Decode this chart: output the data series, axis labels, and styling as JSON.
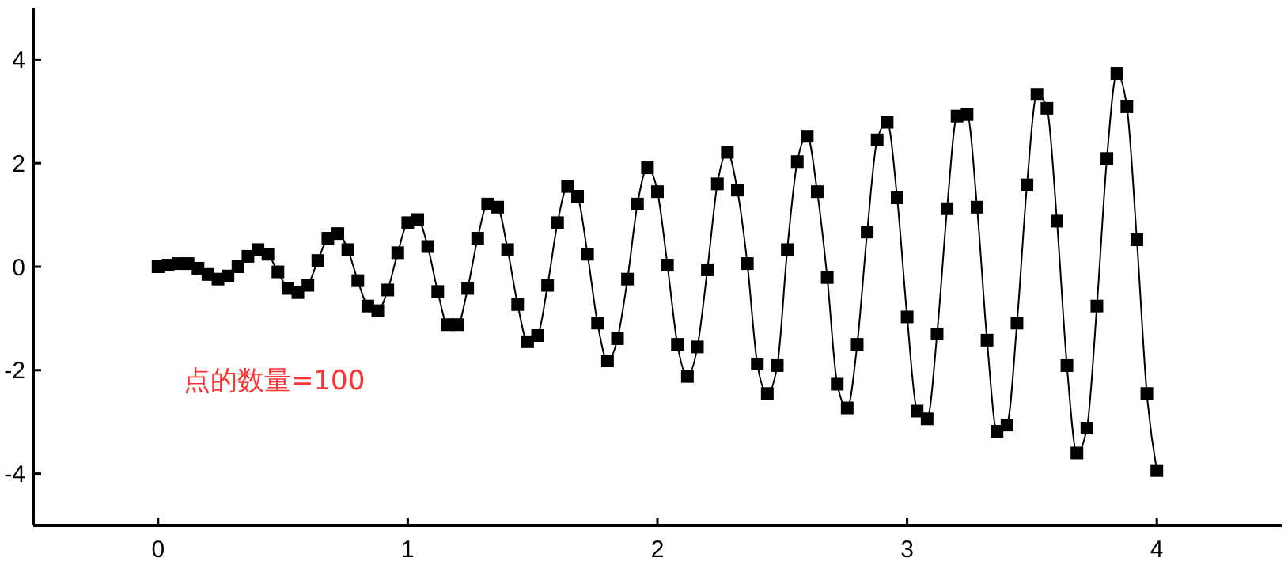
{
  "chart_data": {
    "type": "line",
    "marker": "square",
    "line_style": "solid",
    "xlim": [
      -0.5,
      4.5
    ],
    "ylim": [
      -5,
      5
    ],
    "xticks": [
      0,
      1,
      2,
      3,
      4
    ],
    "yticks": [
      -4,
      -2,
      0,
      2,
      4
    ],
    "grid": false,
    "annotations": [
      "点的数量=100"
    ],
    "x": [
      0,
      0.04,
      0.08,
      0.12,
      0.16,
      0.2,
      0.24,
      0.28,
      0.32,
      0.36,
      0.4,
      0.44,
      0.48,
      0.52,
      0.56,
      0.6,
      0.64,
      0.68,
      0.72,
      0.76,
      0.8,
      0.84,
      0.88,
      0.92,
      0.96,
      1,
      1.04,
      1.08,
      1.12,
      1.16,
      1.2,
      1.24,
      1.28,
      1.32,
      1.36,
      1.4,
      1.44,
      1.48,
      1.52,
      1.56,
      1.6,
      1.64,
      1.68,
      1.72,
      1.76,
      1.8,
      1.84,
      1.88,
      1.92,
      1.96,
      2,
      2.04,
      2.08,
      2.12,
      2.16,
      2.2,
      2.24,
      2.28,
      2.32,
      2.36,
      2.4,
      2.44,
      2.48,
      2.52,
      2.56,
      2.6,
      2.64,
      2.68,
      2.72,
      2.76,
      2.8,
      2.84,
      2.88,
      2.92,
      2.96,
      3,
      3.04,
      3.08,
      3.12,
      3.16,
      3.2,
      3.24,
      3.28,
      3.32,
      3.36,
      3.4,
      3.44,
      3.48,
      3.52,
      3.56,
      3.6,
      3.64,
      3.68,
      3.72,
      3.76,
      3.8,
      3.84,
      3.88,
      3.92,
      3.96,
      4
    ],
    "series": [
      {
        "color": "#000000",
        "values": [
          0,
          0.03,
          0.06,
          0.06,
          -0.03,
          -0.15,
          -0.24,
          -0.18,
          0,
          0.2,
          0.33,
          0.24,
          -0.1,
          -0.42,
          -0.5,
          -0.36,
          0.12,
          0.55,
          0.64,
          0.33,
          -0.27,
          -0.76,
          -0.85,
          -0.45,
          0.27,
          0.85,
          0.91,
          0.39,
          -0.48,
          -1.12,
          -1.12,
          -0.42,
          0.55,
          1.21,
          1.15,
          0.33,
          -0.73,
          -1.45,
          -1.33,
          -0.36,
          0.85,
          1.55,
          1.36,
          0.24,
          -1.09,
          -1.82,
          -1.39,
          -0.24,
          1.21,
          1.91,
          1.45,
          0.03,
          -1.5,
          -2.12,
          -1.55,
          -0.06,
          1.6,
          2.21,
          1.48,
          0.06,
          -1.88,
          -2.45,
          -1.91,
          0.33,
          2.03,
          2.52,
          1.45,
          -0.21,
          -2.27,
          -2.73,
          -1.5,
          0.67,
          2.45,
          2.79,
          1.33,
          -0.97,
          -2.79,
          -2.94,
          -1.3,
          1.12,
          2.91,
          2.94,
          1.15,
          -1.42,
          -3.18,
          -3.06,
          -1.09,
          1.58,
          3.33,
          3.06,
          0.88,
          -1.91,
          -3.6,
          -3.12,
          -0.76,
          2.09,
          3.73,
          3.09,
          0.52,
          -2.45,
          -3.94
        ]
      }
    ]
  }
}
